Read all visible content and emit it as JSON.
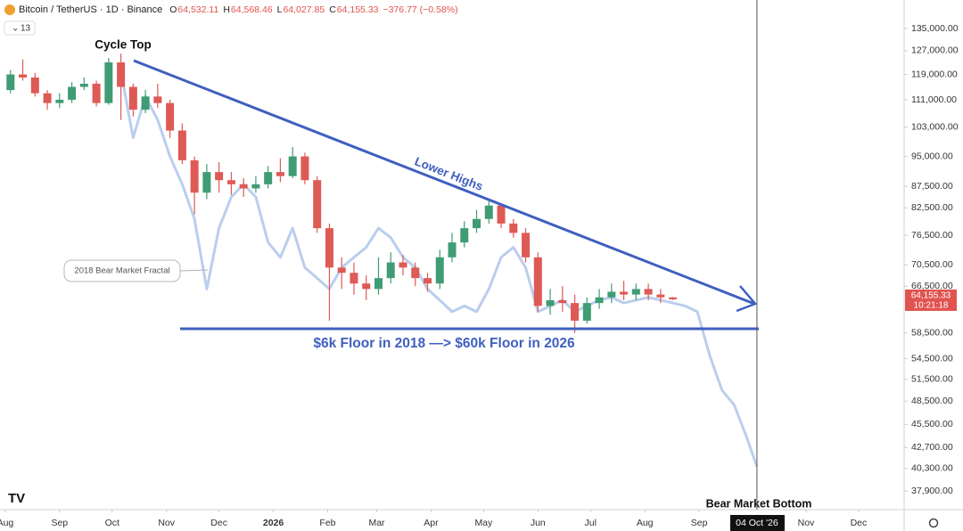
{
  "header": {
    "symbol": "Bitcoin / TetherUS · 1D · Binance",
    "ohlc": [
      {
        "key": "O",
        "value": "64,532.11"
      },
      {
        "key": "H",
        "value": "64,568.46"
      },
      {
        "key": "L",
        "value": "64,027.85"
      },
      {
        "key": "C",
        "value": "64,155.33"
      }
    ],
    "change": "−376.77 (−0.58%)",
    "indicators": "13"
  },
  "chart_data": {
    "type": "candlestick",
    "log_scale": true,
    "annotations": {
      "cycle_top": "Cycle Top",
      "lower_highs": "Lower Highs",
      "floor": "$6k Floor in 2018 —> $60k Floor in 2026",
      "fractal": "2018 Bear Market Fractal",
      "bottom": "Bear Market Bottom"
    },
    "xlim": [
      "2025-07-29",
      "2026-12-27"
    ],
    "xticks": [
      {
        "value": "2025-08-01",
        "label": "Aug"
      },
      {
        "value": "2025-09-01",
        "label": "Sep"
      },
      {
        "value": "2025-10-01",
        "label": "Oct"
      },
      {
        "value": "2025-11-01",
        "label": "Nov"
      },
      {
        "value": "2025-12-01",
        "label": "Dec"
      },
      {
        "value": "2026-01-01",
        "label": "2026"
      },
      {
        "value": "2026-02-01",
        "label": "Feb"
      },
      {
        "value": "2026-03-01",
        "label": "Mar"
      },
      {
        "value": "2026-04-01",
        "label": "Apr"
      },
      {
        "value": "2026-05-01",
        "label": "May"
      },
      {
        "value": "2026-06-01",
        "label": "Jun"
      },
      {
        "value": "2026-07-01",
        "label": "Jul"
      },
      {
        "value": "2026-08-01",
        "label": "Aug"
      },
      {
        "value": "2026-09-01",
        "label": "Sep"
      },
      {
        "value": "2026-11-01",
        "label": "Nov"
      },
      {
        "value": "2026-12-01",
        "label": "Dec"
      }
    ],
    "ylim": [
      36000,
      146000
    ],
    "yticks": [
      {
        "value": 135000,
        "label": "135,000.00"
      },
      {
        "value": 127000,
        "label": "127,000.00"
      },
      {
        "value": 119000,
        "label": "119,000.00"
      },
      {
        "value": 111000,
        "label": "111,000.00"
      },
      {
        "value": 103000,
        "label": "103,000.00"
      },
      {
        "value": 95000,
        "label": "95,000.00"
      },
      {
        "value": 87500,
        "label": "87,500.00"
      },
      {
        "value": 82500,
        "label": "82,500.00"
      },
      {
        "value": 76500,
        "label": "76,500.00"
      },
      {
        "value": 70500,
        "label": "70,500.00"
      },
      {
        "value": 66500,
        "label": "66,500.00"
      },
      {
        "value": 58500,
        "label": "58,500.00"
      },
      {
        "value": 54500,
        "label": "54,500.00"
      },
      {
        "value": 51500,
        "label": "51,500.00"
      },
      {
        "value": 48500,
        "label": "48,500.00"
      },
      {
        "value": 45500,
        "label": "45,500.00"
      },
      {
        "value": 42700,
        "label": "42,700.00"
      },
      {
        "value": 40300,
        "label": "40,300.00"
      },
      {
        "value": 37900,
        "label": "37,900.00"
      }
    ],
    "candles": {
      "up_color": "#3f9c74",
      "down_color": "#de5a55",
      "x": [
        "2025-08-04",
        "2025-08-11",
        "2025-08-18",
        "2025-08-25",
        "2025-09-01",
        "2025-09-08",
        "2025-09-15",
        "2025-09-22",
        "2025-09-29",
        "2025-10-06",
        "2025-10-13",
        "2025-10-20",
        "2025-10-27",
        "2025-11-03",
        "2025-11-10",
        "2025-11-17",
        "2025-11-24",
        "2025-12-01",
        "2025-12-08",
        "2025-12-15",
        "2025-12-22",
        "2025-12-29",
        "2026-01-05",
        "2026-01-12",
        "2026-01-19",
        "2026-01-26",
        "2026-02-02",
        "2026-02-09",
        "2026-02-16",
        "2026-02-23",
        "2026-03-02",
        "2026-03-09",
        "2026-03-16",
        "2026-03-23",
        "2026-03-30",
        "2026-04-06",
        "2026-04-13",
        "2026-04-20",
        "2026-04-27",
        "2026-05-04",
        "2026-05-11",
        "2026-05-18",
        "2026-05-25",
        "2026-06-01",
        "2026-06-08",
        "2026-06-15",
        "2026-06-22",
        "2026-06-29",
        "2026-07-06",
        "2026-07-13",
        "2026-07-20",
        "2026-07-27",
        "2026-08-03",
        "2026-08-10",
        "2026-08-17"
      ],
      "open": [
        114000,
        119000,
        118000,
        113000,
        110000,
        111000,
        115000,
        116000,
        110000,
        123000,
        115000,
        108000,
        112000,
        110000,
        102000,
        94000,
        86000,
        91000,
        89000,
        88000,
        87000,
        88000,
        91000,
        90000,
        95000,
        89000,
        78000,
        70000,
        69000,
        67000,
        66000,
        68000,
        71000,
        70000,
        68000,
        67000,
        72000,
        75000,
        78000,
        80000,
        83000,
        79000,
        77000,
        72000,
        63000,
        64000,
        63500,
        60500,
        63500,
        64500,
        65500,
        65000,
        66000,
        65000,
        64500
      ],
      "high": [
        120500,
        124000,
        119500,
        114000,
        113000,
        116500,
        118000,
        117000,
        124500,
        126000,
        116000,
        114000,
        116000,
        111000,
        104000,
        95000,
        93000,
        93500,
        91000,
        89500,
        90000,
        92500,
        94500,
        97500,
        96000,
        90000,
        79000,
        72000,
        71000,
        68500,
        72000,
        73000,
        72500,
        71000,
        69000,
        73500,
        77000,
        79500,
        82000,
        84000,
        83500,
        80000,
        78000,
        73000,
        66000,
        66500,
        65000,
        64500,
        66000,
        67000,
        67500,
        67000,
        67000,
        66000,
        64568.46
      ],
      "low": [
        113000,
        117000,
        112000,
        108000,
        108500,
        110000,
        114000,
        109000,
        109500,
        105000,
        106000,
        107000,
        108500,
        100000,
        93000,
        81000,
        84500,
        86000,
        85500,
        85000,
        86000,
        87000,
        88500,
        89500,
        88000,
        77000,
        60500,
        66000,
        65000,
        64000,
        65000,
        67000,
        68500,
        66500,
        65500,
        66000,
        71000,
        74000,
        77000,
        79000,
        78000,
        76000,
        71000,
        62000,
        61500,
        62000,
        58500,
        60000,
        62500,
        63500,
        64000,
        64000,
        64000,
        63500,
        64027.85
      ],
      "close": [
        119000,
        118000,
        113000,
        110000,
        111000,
        115000,
        116000,
        110000,
        123000,
        115000,
        108000,
        112000,
        110000,
        102000,
        94000,
        86000,
        91000,
        89000,
        88000,
        87000,
        88000,
        91000,
        90000,
        95000,
        89000,
        78000,
        70000,
        69000,
        67000,
        66000,
        68000,
        71000,
        70000,
        68000,
        67000,
        72000,
        75000,
        78000,
        80000,
        83000,
        79000,
        77000,
        72000,
        63000,
        64000,
        63500,
        60500,
        63500,
        64500,
        65500,
        65000,
        66000,
        65000,
        64500,
        64155.33
      ]
    },
    "fractal": {
      "color": "#a9c2ea",
      "x": [
        "2025-10-06",
        "2025-10-13",
        "2025-10-20",
        "2025-10-27",
        "2025-11-03",
        "2025-11-10",
        "2025-11-17",
        "2025-11-24",
        "2025-12-01",
        "2025-12-08",
        "2025-12-15",
        "2025-12-22",
        "2025-12-29",
        "2026-01-05",
        "2026-01-12",
        "2026-01-19",
        "2026-01-26",
        "2026-02-02",
        "2026-02-09",
        "2026-02-16",
        "2026-02-23",
        "2026-03-02",
        "2026-03-09",
        "2026-03-16",
        "2026-03-23",
        "2026-03-30",
        "2026-04-06",
        "2026-04-13",
        "2026-04-20",
        "2026-04-27",
        "2026-05-04",
        "2026-05-11",
        "2026-05-18",
        "2026-05-25",
        "2026-06-01",
        "2026-06-08",
        "2026-06-15",
        "2026-06-22",
        "2026-06-29",
        "2026-07-06",
        "2026-07-13",
        "2026-07-20",
        "2026-07-27",
        "2026-08-03",
        "2026-08-10",
        "2026-08-17",
        "2026-08-24",
        "2026-08-31",
        "2026-09-07",
        "2026-09-14",
        "2026-09-21",
        "2026-09-28",
        "2026-10-04"
      ],
      "values": [
        120000,
        100000,
        112000,
        105000,
        95000,
        88000,
        80000,
        66000,
        78000,
        85000,
        88000,
        85000,
        75000,
        72000,
        78000,
        70000,
        68000,
        66000,
        70000,
        72000,
        74000,
        78000,
        76000,
        72000,
        70000,
        66000,
        64000,
        62000,
        63000,
        62000,
        66000,
        72000,
        74000,
        70000,
        62000,
        63000,
        64000,
        62000,
        63000,
        64000,
        64500,
        63500,
        64000,
        64500,
        64000,
        63500,
        63000,
        62000,
        55000,
        50000,
        48000,
        44000,
        40500
      ]
    },
    "price_tag": {
      "value": 64155.33,
      "label": "64,155.33",
      "countdown": "10:21:18",
      "color": "#e0534f"
    },
    "crosshair": {
      "value": "2026-10-04",
      "label": "04 Oct '26"
    }
  }
}
